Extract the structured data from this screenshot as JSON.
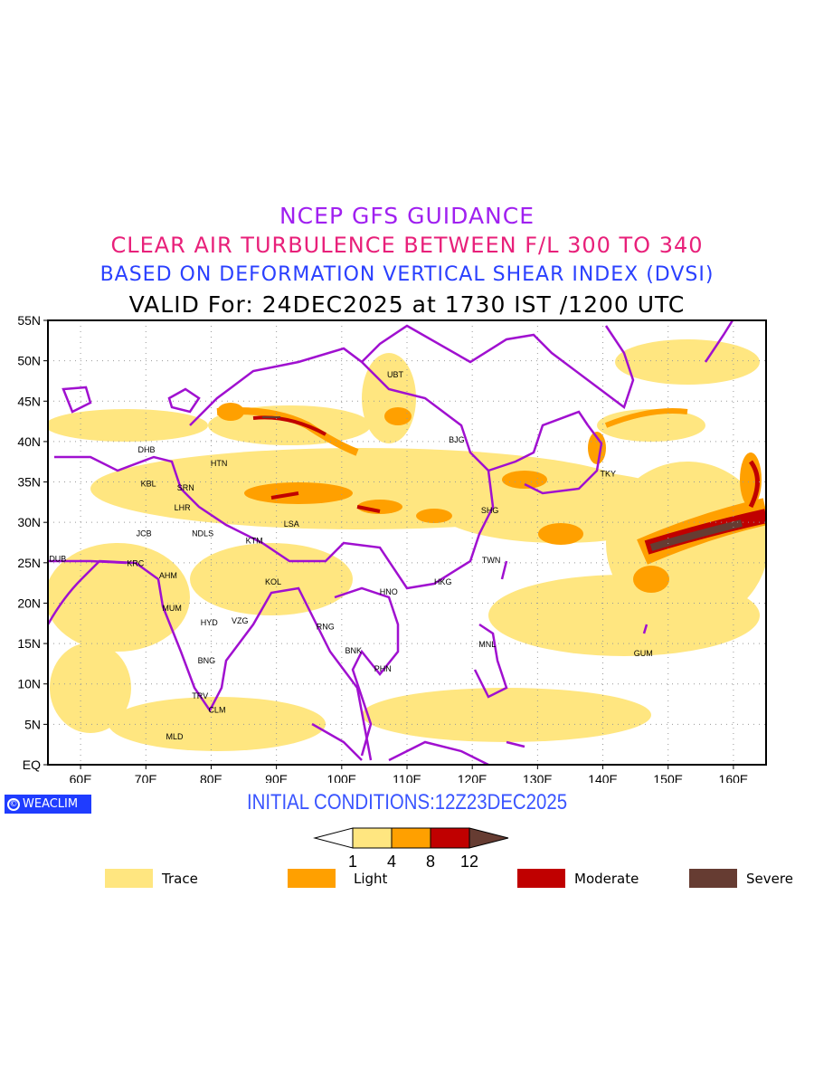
{
  "titles": {
    "line1": "NCEP GFS GUIDANCE",
    "line2": "CLEAR AIR TURBULENCE BETWEEN F/L 300 TO 340",
    "line3": "BASED ON DEFORMATION VERTICAL SHEAR INDEX (DVSI)",
    "line4": "VALID For: 24DEC2025 at 1730 IST /1200 UTC"
  },
  "map": {
    "lon_range": [
      55,
      165
    ],
    "lat_range": [
      0,
      55
    ],
    "lat_ticks": [
      "EQ",
      "5N",
      "10N",
      "15N",
      "20N",
      "25N",
      "30N",
      "35N",
      "40N",
      "45N",
      "50N",
      "55N"
    ],
    "lon_ticks": [
      "60E",
      "70E",
      "80E",
      "90E",
      "100E",
      "110E",
      "120E",
      "130E",
      "140E",
      "150E",
      "160E"
    ],
    "cities": [
      {
        "code": "UBT",
        "lon": 108.2,
        "lat": 48.3
      },
      {
        "code": "BJG",
        "lon": 117.6,
        "lat": 40.2
      },
      {
        "code": "DHB",
        "lon": 70.1,
        "lat": 39.0
      },
      {
        "code": "HTN",
        "lon": 81.2,
        "lat": 37.3
      },
      {
        "code": "KBL",
        "lon": 70.4,
        "lat": 34.8
      },
      {
        "code": "SRN",
        "lon": 76.1,
        "lat": 34.3
      },
      {
        "code": "TKY",
        "lon": 140.8,
        "lat": 36.0
      },
      {
        "code": "SHG",
        "lon": 122.7,
        "lat": 31.5
      },
      {
        "code": "LHR",
        "lon": 75.6,
        "lat": 31.8
      },
      {
        "code": "LSA",
        "lon": 92.3,
        "lat": 29.8
      },
      {
        "code": "JCB",
        "lon": 69.7,
        "lat": 28.6
      },
      {
        "code": "NDLS",
        "lon": 78.7,
        "lat": 28.6
      },
      {
        "code": "KTM",
        "lon": 86.6,
        "lat": 27.7
      },
      {
        "code": "DUB",
        "lon": 56.5,
        "lat": 25.5
      },
      {
        "code": "TWN",
        "lon": 122.9,
        "lat": 25.3
      },
      {
        "code": "KRC",
        "lon": 68.4,
        "lat": 24.9
      },
      {
        "code": "AHM",
        "lon": 73.4,
        "lat": 23.4
      },
      {
        "code": "KOL",
        "lon": 89.5,
        "lat": 22.6
      },
      {
        "code": "HKG",
        "lon": 115.5,
        "lat": 22.6
      },
      {
        "code": "HNO",
        "lon": 107.2,
        "lat": 21.4
      },
      {
        "code": "MUM",
        "lon": 74.0,
        "lat": 19.4
      },
      {
        "code": "HYD",
        "lon": 79.7,
        "lat": 17.6
      },
      {
        "code": "VZG",
        "lon": 84.4,
        "lat": 17.8
      },
      {
        "code": "RNG",
        "lon": 97.5,
        "lat": 17.1
      },
      {
        "code": "BNK",
        "lon": 101.8,
        "lat": 14.1
      },
      {
        "code": "MNL",
        "lon": 122.3,
        "lat": 14.9
      },
      {
        "code": "GUM",
        "lon": 146.2,
        "lat": 13.8
      },
      {
        "code": "PHN",
        "lon": 106.3,
        "lat": 11.9
      },
      {
        "code": "BNG",
        "lon": 79.3,
        "lat": 12.9
      },
      {
        "code": "TRV",
        "lon": 78.3,
        "lat": 8.5
      },
      {
        "code": "CLM",
        "lon": 80.9,
        "lat": 6.8
      },
      {
        "code": "MLD",
        "lon": 74.4,
        "lat": 3.5
      }
    ]
  },
  "logo": {
    "symbol": "©",
    "text": "WEACLIM"
  },
  "initial_conditions": "INITIAL CONDITIONS:12Z23DEC2025",
  "colorbar": {
    "ticks": [
      "1",
      "4",
      "8",
      "12"
    ],
    "colors": [
      "#ffe680",
      "#ffa000",
      "#c00000",
      "#663c32"
    ]
  },
  "legend": [
    {
      "label": "Trace",
      "color": "#ffe680"
    },
    {
      "label": "Light",
      "color": "#ffa000"
    },
    {
      "label": "Moderate",
      "color": "#c00000"
    },
    {
      "label": "Severe",
      "color": "#663c32"
    }
  ]
}
